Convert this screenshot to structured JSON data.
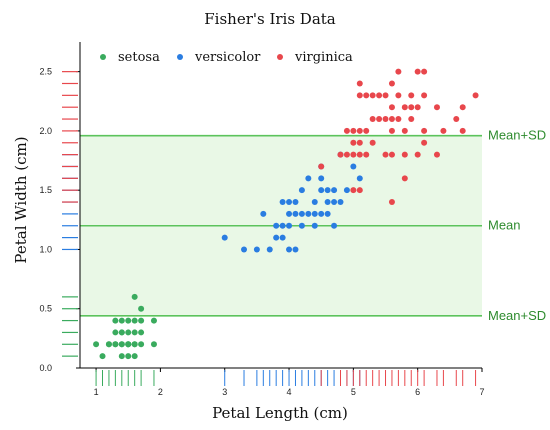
{
  "chart_data": {
    "type": "scatter",
    "title": "Fisher's Iris Data",
    "xlabel": "Petal Length (cm)",
    "ylabel": "Petal Width (cm)",
    "xlim": [
      0.75,
      7.0
    ],
    "ylim": [
      0.0,
      2.75
    ],
    "xticks": [
      1,
      2,
      3,
      4,
      5,
      6,
      7
    ],
    "yticks": [
      0.0,
      0.5,
      1.0,
      1.5,
      2.0,
      2.5
    ],
    "xtick_labels": [
      "1",
      "2",
      "3",
      "4",
      "5",
      "6",
      "7"
    ],
    "ytick_labels": [
      "0.0",
      "0.5",
      "1.0",
      "1.5",
      "2.0",
      "2.5"
    ],
    "grid": false,
    "legend": {
      "placement": "top-left",
      "entries": [
        "setosa",
        "versicolor",
        "virginica"
      ]
    },
    "colors": {
      "setosa": "#3aab5e",
      "versicolor": "#2a7de1",
      "virginica": "#e8474c",
      "ref_line": "#5cc35c",
      "band": "#e9f8e6"
    },
    "reference_lines": [
      {
        "label": "Mean+SD",
        "value": 1.96
      },
      {
        "label": "Mean",
        "value": 1.2
      },
      {
        "label": "Mean+SD",
        "value": 0.44
      }
    ],
    "band": [
      0.44,
      1.96
    ],
    "series": [
      {
        "name": "setosa",
        "points": [
          [
            1.0,
            0.2
          ],
          [
            1.1,
            0.1
          ],
          [
            1.2,
            0.2
          ],
          [
            1.2,
            0.2
          ],
          [
            1.3,
            0.2
          ],
          [
            1.3,
            0.3
          ],
          [
            1.3,
            0.4
          ],
          [
            1.3,
            0.2
          ],
          [
            1.4,
            0.2
          ],
          [
            1.4,
            0.3
          ],
          [
            1.4,
            0.1
          ],
          [
            1.4,
            0.2
          ],
          [
            1.4,
            0.3
          ],
          [
            1.5,
            0.2
          ],
          [
            1.5,
            0.4
          ],
          [
            1.5,
            0.1
          ],
          [
            1.5,
            0.2
          ],
          [
            1.5,
            0.3
          ],
          [
            1.5,
            0.2
          ],
          [
            1.6,
            0.2
          ],
          [
            1.6,
            0.4
          ],
          [
            1.6,
            0.6
          ],
          [
            1.6,
            0.2
          ],
          [
            1.6,
            0.3
          ],
          [
            1.7,
            0.4
          ],
          [
            1.7,
            0.5
          ],
          [
            1.7,
            0.3
          ],
          [
            1.7,
            0.2
          ],
          [
            1.9,
            0.2
          ],
          [
            1.9,
            0.4
          ],
          [
            1.4,
            0.4
          ],
          [
            1.6,
            0.1
          ]
        ]
      },
      {
        "name": "versicolor",
        "points": [
          [
            3.0,
            1.1
          ],
          [
            3.3,
            1.0
          ],
          [
            3.5,
            1.0
          ],
          [
            3.6,
            1.3
          ],
          [
            3.7,
            1.0
          ],
          [
            3.8,
            1.1
          ],
          [
            3.9,
            1.1
          ],
          [
            3.9,
            1.2
          ],
          [
            3.9,
            1.4
          ],
          [
            4.0,
            1.0
          ],
          [
            4.0,
            1.2
          ],
          [
            4.0,
            1.3
          ],
          [
            4.1,
            1.0
          ],
          [
            4.1,
            1.3
          ],
          [
            4.2,
            1.2
          ],
          [
            4.2,
            1.3
          ],
          [
            4.2,
            1.5
          ],
          [
            4.3,
            1.3
          ],
          [
            4.4,
            1.2
          ],
          [
            4.4,
            1.3
          ],
          [
            4.4,
            1.4
          ],
          [
            4.5,
            1.3
          ],
          [
            4.5,
            1.5
          ],
          [
            4.5,
            1.6
          ],
          [
            4.5,
            1.7
          ],
          [
            4.6,
            1.3
          ],
          [
            4.6,
            1.4
          ],
          [
            4.6,
            1.5
          ],
          [
            4.7,
            1.2
          ],
          [
            4.7,
            1.4
          ],
          [
            4.7,
            1.5
          ],
          [
            4.8,
            1.4
          ],
          [
            4.8,
            1.8
          ],
          [
            4.9,
            1.5
          ],
          [
            5.0,
            1.7
          ],
          [
            5.1,
            1.6
          ],
          [
            4.3,
            1.6
          ],
          [
            4.1,
            1.4
          ],
          [
            4.0,
            1.4
          ],
          [
            3.8,
            1.2
          ]
        ]
      },
      {
        "name": "virginica",
        "points": [
          [
            4.5,
            1.7
          ],
          [
            4.8,
            1.8
          ],
          [
            4.9,
            1.8
          ],
          [
            5.0,
            1.5
          ],
          [
            5.0,
            1.9
          ],
          [
            5.0,
            2.0
          ],
          [
            5.1,
            1.5
          ],
          [
            5.1,
            1.8
          ],
          [
            5.1,
            1.9
          ],
          [
            5.1,
            2.0
          ],
          [
            5.1,
            2.3
          ],
          [
            5.2,
            2.0
          ],
          [
            5.2,
            2.3
          ],
          [
            5.3,
            1.9
          ],
          [
            5.3,
            2.3
          ],
          [
            5.4,
            2.1
          ],
          [
            5.4,
            2.3
          ],
          [
            5.5,
            1.8
          ],
          [
            5.5,
            2.1
          ],
          [
            5.6,
            1.4
          ],
          [
            5.6,
            1.8
          ],
          [
            5.6,
            2.1
          ],
          [
            5.6,
            2.2
          ],
          [
            5.6,
            2.4
          ],
          [
            5.7,
            2.1
          ],
          [
            5.7,
            2.3
          ],
          [
            5.7,
            2.5
          ],
          [
            5.8,
            1.6
          ],
          [
            5.8,
            1.8
          ],
          [
            5.8,
            2.2
          ],
          [
            5.9,
            2.1
          ],
          [
            5.9,
            2.3
          ],
          [
            6.0,
            1.8
          ],
          [
            6.0,
            2.5
          ],
          [
            6.1,
            1.9
          ],
          [
            6.1,
            2.3
          ],
          [
            6.1,
            2.5
          ],
          [
            6.3,
            1.8
          ],
          [
            6.4,
            2.0
          ],
          [
            6.6,
            2.1
          ],
          [
            6.7,
            2.0
          ],
          [
            6.7,
            2.2
          ],
          [
            6.9,
            2.3
          ],
          [
            5.1,
            2.4
          ],
          [
            5.6,
            2.0
          ],
          [
            5.8,
            2.0
          ],
          [
            6.1,
            2.0
          ],
          [
            5.3,
            2.1
          ],
          [
            5.2,
            1.8
          ],
          [
            5.0,
            1.8
          ],
          [
            4.9,
            2.0
          ],
          [
            6.0,
            2.2
          ],
          [
            6.3,
            2.2
          ],
          [
            5.9,
            2.2
          ],
          [
            5.5,
            2.3
          ]
        ]
      }
    ]
  }
}
